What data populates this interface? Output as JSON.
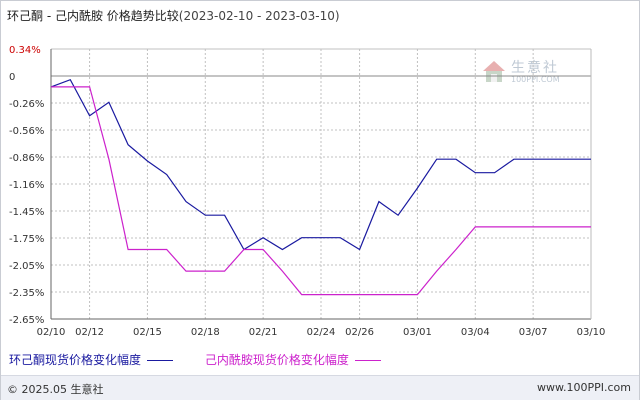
{
  "title": {
    "main": "环己酮 - 己内酰胺 价格趋势比较",
    "dates": "(2023-02-10 - 2023-03-10)"
  },
  "watermark": {
    "name": "生意社",
    "url": "100PPI.COM"
  },
  "footer": {
    "left": "© 2025.05 生意社",
    "right": "www.100PPI.com"
  },
  "colors": {
    "series1": "#1a1aa0",
    "series2": "#cc22cc",
    "grid": "#c0c0c0",
    "axis": "#666666",
    "top_tick": "#cc0000"
  },
  "chart_data": {
    "type": "line",
    "x": [
      "02/10",
      "02/11",
      "02/12",
      "02/13",
      "02/14",
      "02/15",
      "02/16",
      "02/17",
      "02/18",
      "02/19",
      "02/20",
      "02/21",
      "02/22",
      "02/23",
      "02/24",
      "02/25",
      "02/26",
      "02/27",
      "02/28",
      "03/01",
      "03/02",
      "03/03",
      "03/04",
      "03/05",
      "03/06",
      "03/07",
      "03/08",
      "03/09",
      "03/10"
    ],
    "x_tick_labels": [
      "02/10",
      "02/12",
      "02/15",
      "02/18",
      "02/21",
      "02/24",
      "02/26",
      "03/01",
      "03/04",
      "03/07",
      "03/10"
    ],
    "y_tick_labels": [
      "0.34%",
      "0",
      "-0.26%",
      "-0.56%",
      "-0.86%",
      "-1.16%",
      "-1.45%",
      "-1.75%",
      "-2.05%",
      "-2.35%",
      "-2.65%"
    ],
    "ylim": [
      -2.65,
      0.34
    ],
    "grid": true,
    "series": [
      {
        "name": "环己酮现货价格变化幅度",
        "values": [
          -0.08,
          0.0,
          -0.4,
          -0.25,
          -0.72,
          -0.9,
          -1.05,
          -1.35,
          -1.5,
          -1.5,
          -1.88,
          -1.75,
          -1.88,
          -1.75,
          -1.75,
          -1.75,
          -1.88,
          -1.35,
          -1.5,
          -1.2,
          -0.88,
          -0.88,
          -1.03,
          -1.03,
          -0.88,
          -0.88,
          -0.88,
          -0.88,
          -0.88
        ]
      },
      {
        "name": "己内酰胺现货价格变化幅度",
        "values": [
          -0.08,
          -0.08,
          -0.08,
          -0.88,
          -1.88,
          -1.88,
          -1.88,
          -2.12,
          -2.12,
          -2.12,
          -1.88,
          -1.88,
          -2.12,
          -2.38,
          -2.38,
          -2.38,
          -2.38,
          -2.38,
          -2.38,
          -2.38,
          -2.12,
          -1.88,
          -1.63,
          -1.63,
          -1.63,
          -1.63,
          -1.63,
          -1.63,
          -1.63
        ]
      }
    ]
  }
}
